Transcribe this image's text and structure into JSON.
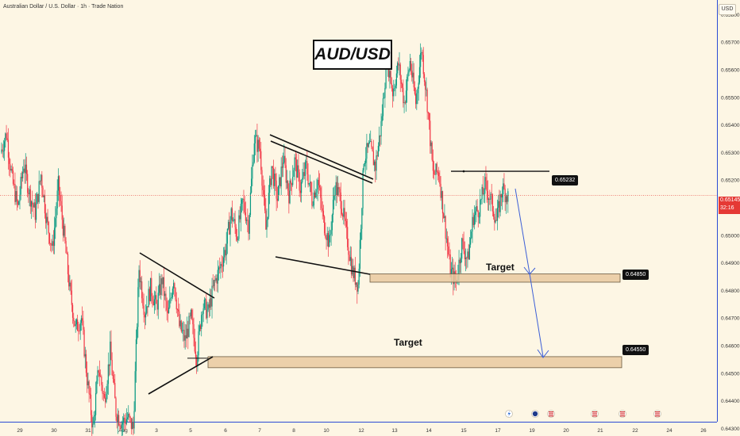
{
  "header": {
    "symbol_line": "Australian Dollar / U.S. Dollar · 1h · Trade Nation",
    "currency": "USD"
  },
  "title": "AUD/USD",
  "annotations": {
    "target_upper": {
      "label": "Target",
      "price": "0.64850"
    },
    "target_lower": {
      "label": "Target",
      "price": "0.64550"
    },
    "resistance_tag": "0.65232",
    "current_price": "0.65145",
    "countdown": "32:16"
  },
  "colors": {
    "bull": "#089981",
    "bear": "#f23645",
    "zone_fill": "#e9c9a0",
    "zone_border": "#6b5a40",
    "arrow": "#3d5fd6",
    "price_line": "#e53935",
    "background": "#fdf6e4"
  },
  "event_icons": [
    "lightning-icon",
    "flag-icon",
    "us-flag-icon",
    "us-flag-icon",
    "us-flag-icon",
    "us-flag-icon",
    "us-flag-icon"
  ],
  "chart_data": {
    "type": "candlestick",
    "title": "AUD/USD",
    "ylim": [
      0.6427,
      0.6592
    ],
    "y_ticks": [
      "0.65800",
      "0.65700",
      "0.65600",
      "0.65500",
      "0.65400",
      "0.65300",
      "0.65200",
      "0.65000",
      "0.64900",
      "0.64800",
      "0.64700",
      "0.64600",
      "0.64500",
      "0.64400",
      "0.64300"
    ],
    "x_ticks": [
      "29",
      "30",
      "31",
      "Aug",
      "3",
      "5",
      "6",
      "7",
      "8",
      "10",
      "12",
      "13",
      "14",
      "15",
      "17",
      "19",
      "20",
      "21",
      "22",
      "24",
      "26"
    ],
    "price_path": [
      0.653,
      0.6537,
      0.652,
      0.651,
      0.6526,
      0.6515,
      0.6508,
      0.6522,
      0.6505,
      0.6495,
      0.6518,
      0.65,
      0.648,
      0.6466,
      0.647,
      0.6448,
      0.643,
      0.6452,
      0.644,
      0.6458,
      0.6436,
      0.6432,
      0.6434,
      0.643,
      0.6488,
      0.6472,
      0.6481,
      0.6474,
      0.6484,
      0.647,
      0.6485,
      0.6467,
      0.6462,
      0.647,
      0.6456,
      0.6475,
      0.6472,
      0.6482,
      0.6488,
      0.6495,
      0.6508,
      0.65,
      0.6512,
      0.6504,
      0.6535,
      0.6531,
      0.6502,
      0.6525,
      0.6513,
      0.6528,
      0.6515,
      0.6527,
      0.6517,
      0.6525,
      0.6513,
      0.652,
      0.6505,
      0.6497,
      0.6518,
      0.6513,
      0.65,
      0.6487,
      0.6482,
      0.6528,
      0.6532,
      0.6525,
      0.654,
      0.6565,
      0.6552,
      0.6562,
      0.6548,
      0.6563,
      0.6548,
      0.6568,
      0.6548,
      0.6522,
      0.6523,
      0.6505,
      0.6487,
      0.6483,
      0.6497,
      0.6491,
      0.6507,
      0.651,
      0.6518,
      0.6513,
      0.6505,
      0.6517,
      0.6514
    ],
    "price_path_x_range": [
      "29",
      "17"
    ],
    "levels": [
      {
        "name": "resistance",
        "value": 0.65232
      },
      {
        "name": "target_zone_upper",
        "low": 0.6483,
        "high": 0.6486
      },
      {
        "name": "target_zone_lower",
        "low": 0.6452,
        "high": 0.6456
      },
      {
        "name": "current_price",
        "value": 0.65145
      }
    ],
    "projection_arrow": [
      [
        0.6521,
        0.6484
      ],
      [
        0.6484,
        0.6455
      ]
    ]
  }
}
